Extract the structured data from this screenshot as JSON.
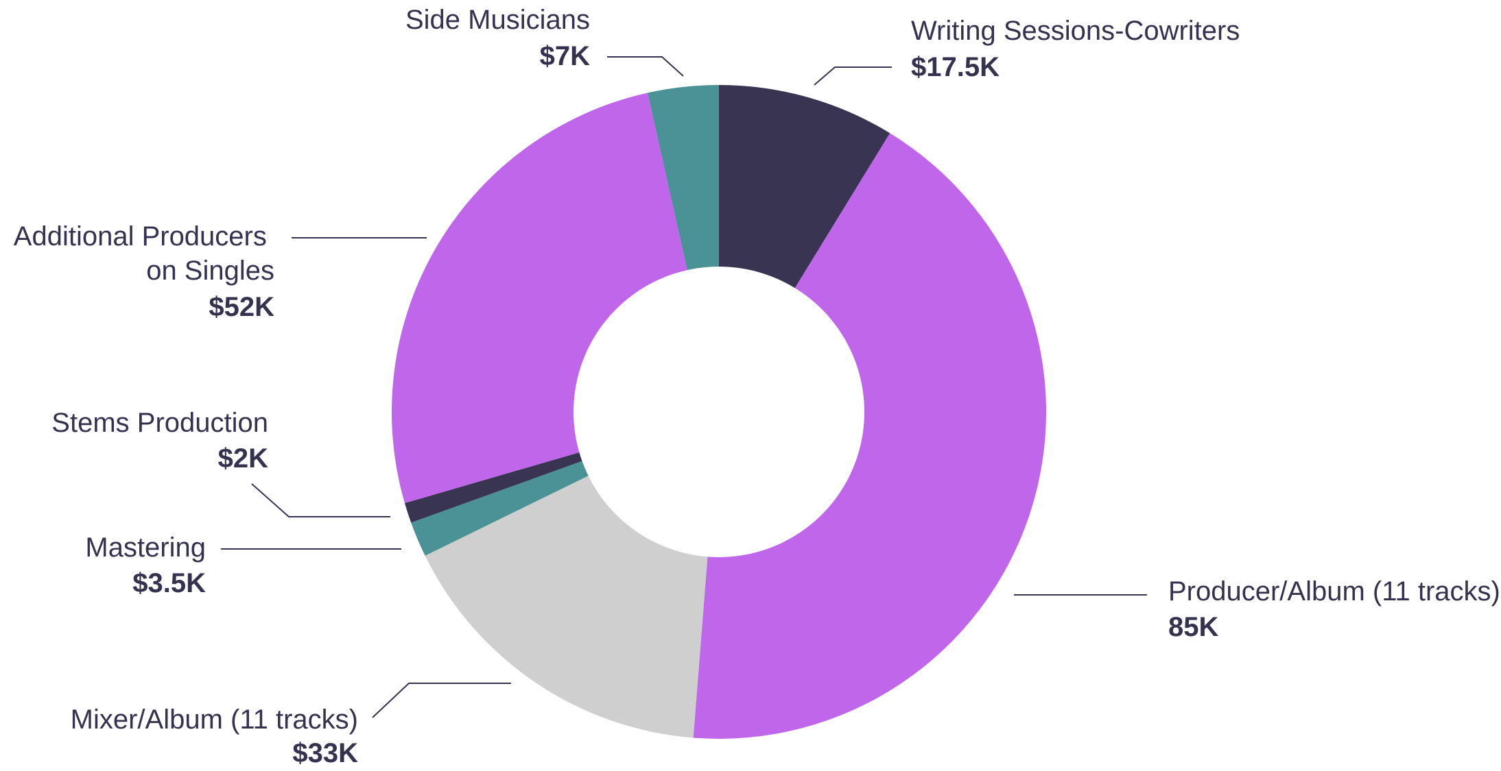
{
  "chart_data": {
    "type": "pie",
    "donut": true,
    "legend": "none",
    "slices": [
      {
        "name": "Writing Sessions-Cowriters",
        "value_label": "$17.5K",
        "value": 17.5,
        "color": "#383452"
      },
      {
        "name": "Producer/Album (11 tracks)",
        "value_label": "85K",
        "value": 85,
        "color": "#c066eb"
      },
      {
        "name": "Mixer/Album (11 tracks)",
        "value_label": "$33K",
        "value": 33,
        "color": "#cfcfcf"
      },
      {
        "name": "Mastering",
        "value_label": "$3.5K",
        "value": 3.5,
        "color": "#4b9296"
      },
      {
        "name": "Stems Production",
        "value_label": "$2K",
        "value": 2,
        "color": "#383452"
      },
      {
        "name": "Additional Producers on Singles",
        "value_label": "$52K",
        "value": 52,
        "color": "#c066eb"
      },
      {
        "name": "Side Musicians",
        "value_label": "$7K",
        "value": 7,
        "color": "#4b9296"
      }
    ]
  }
}
